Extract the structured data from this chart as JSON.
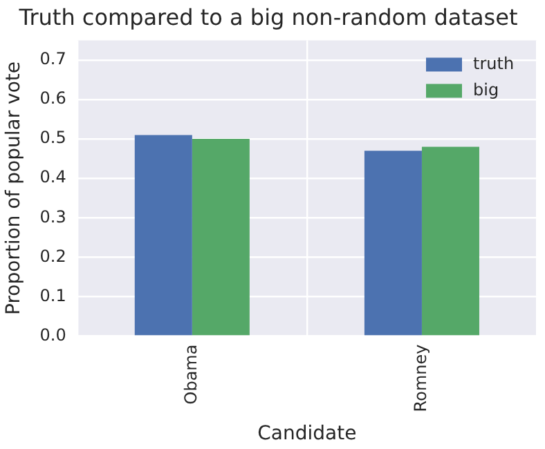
{
  "chart_data": {
    "type": "bar",
    "title": "Truth compared to a big non-random dataset",
    "xlabel": "Candidate",
    "ylabel": "Proportion of popular vote",
    "categories": [
      "Obama",
      "Romney"
    ],
    "series": [
      {
        "name": "truth",
        "color": "#4c72b0",
        "values": [
          0.51,
          0.47
        ]
      },
      {
        "name": "big",
        "color": "#55a868",
        "values": [
          0.5,
          0.48
        ]
      }
    ],
    "ylim": [
      0,
      0.75
    ],
    "yticks": [
      {
        "value": 0,
        "label": "0.0"
      },
      {
        "value": 0.1,
        "label": "0.1"
      },
      {
        "value": 0.2,
        "label": "0.2"
      },
      {
        "value": 0.3,
        "label": "0.3"
      },
      {
        "value": 0.4,
        "label": "0.4"
      },
      {
        "value": 0.5,
        "label": "0.5"
      },
      {
        "value": 0.6,
        "label": "0.6"
      },
      {
        "value": 0.7,
        "label": "0.7"
      }
    ],
    "grid": true,
    "legend": "top right"
  }
}
